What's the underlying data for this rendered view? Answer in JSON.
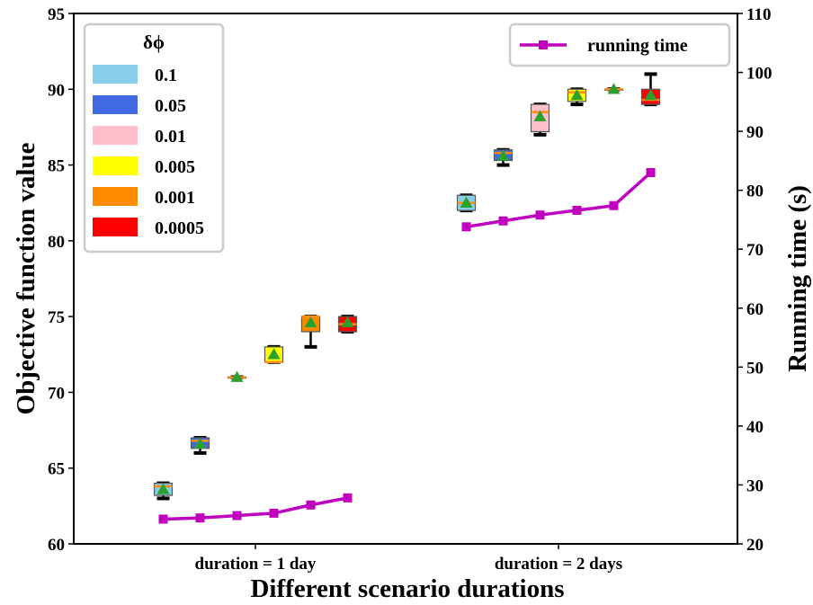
{
  "chart_data": {
    "type": "box",
    "xlabel": "Different scenario durations",
    "ylabel": "Objective function value",
    "ylabel_right": "Running time (s)",
    "ylim": [
      60,
      95
    ],
    "ylim_right": [
      20,
      110
    ],
    "yticks": [
      60,
      65,
      70,
      75,
      80,
      85,
      90,
      95
    ],
    "yticks_right": [
      20,
      30,
      40,
      50,
      60,
      70,
      80,
      90,
      100,
      110
    ],
    "groups": [
      "duration = 1 day",
      "duration = 2 days"
    ],
    "legend_title": "δϕ",
    "legend_position": "top-left",
    "series": [
      {
        "name": "0.1",
        "color": "#87CEEB",
        "boxes": [
          {
            "min": 63.0,
            "q1": 63.2,
            "median": 63.8,
            "q3": 64.0,
            "max": 64.0,
            "mean": 63.6
          },
          {
            "min": 82.0,
            "q1": 82.0,
            "median": 82.5,
            "q3": 83.0,
            "max": 83.0,
            "mean": 82.5
          }
        ]
      },
      {
        "name": "0.05",
        "color": "#4169E1",
        "boxes": [
          {
            "min": 66.0,
            "q1": 66.3,
            "median": 66.8,
            "q3": 67.0,
            "max": 67.0,
            "mean": 66.6
          },
          {
            "min": 85.0,
            "q1": 85.3,
            "median": 85.8,
            "q3": 86.0,
            "max": 86.0,
            "mean": 85.6
          }
        ]
      },
      {
        "name": "0.01",
        "color": "#FFC0CB",
        "boxes": [
          {
            "min": 71.0,
            "q1": 71.0,
            "median": 71.0,
            "q3": 71.0,
            "max": 71.0,
            "mean": 71.0
          },
          {
            "min": 87.0,
            "q1": 87.2,
            "median": 88.5,
            "q3": 89.0,
            "max": 89.0,
            "mean": 88.2
          }
        ]
      },
      {
        "name": "0.005",
        "color": "#FFFF00",
        "boxes": [
          {
            "min": 72.0,
            "q1": 72.0,
            "median": 72.0,
            "q3": 73.0,
            "max": 73.0,
            "mean": 72.5
          },
          {
            "min": 89.0,
            "q1": 89.2,
            "median": 89.8,
            "q3": 90.0,
            "max": 90.0,
            "mean": 89.6
          }
        ]
      },
      {
        "name": "0.001",
        "color": "#FF8C00",
        "boxes": [
          {
            "min": 73.0,
            "q1": 74.0,
            "median": 75.0,
            "q3": 75.0,
            "max": 75.0,
            "mean": 74.6
          },
          {
            "min": 90.0,
            "q1": 90.0,
            "median": 90.0,
            "q3": 90.0,
            "max": 90.0,
            "mean": 90.0
          }
        ]
      },
      {
        "name": "0.0005",
        "color": "#FF0000",
        "boxes": [
          {
            "min": 74.0,
            "q1": 74.0,
            "median": 74.5,
            "q3": 75.0,
            "max": 75.0,
            "mean": 74.6
          },
          {
            "min": 89.0,
            "q1": 89.0,
            "median": 89.3,
            "q3": 90.0,
            "max": 91.0,
            "mean": 89.6
          }
        ]
      }
    ],
    "running_time": {
      "name": "running time",
      "color": "#BF00BF",
      "axis": "right",
      "values": [
        [
          24.2,
          24.4,
          24.8,
          25.2,
          26.6,
          27.8
        ],
        [
          73.8,
          74.8,
          75.8,
          76.6,
          77.4,
          83.0
        ]
      ]
    },
    "mean_marker_color": "#2CA02C",
    "median_color": "#FF8C1A",
    "whisker_color": "#000000"
  }
}
